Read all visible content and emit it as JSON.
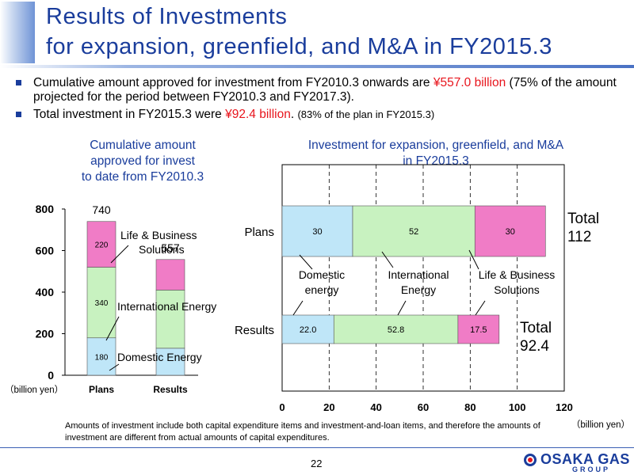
{
  "header": {
    "title_line1": "Results of Investments",
    "title_line2": "for expansion, greenfield, and M&A in FY2015.3"
  },
  "bullets": [
    {
      "pre": "Cumulative amount approved for investment from FY2010.3 onwards are ",
      "highlight": "¥557.0 billion",
      "post": " (75% of the amount projected for the period between FY2010.3 and FY2017.3).",
      "small": ""
    },
    {
      "pre": "Total investment in FY2015.3 were ",
      "highlight": "¥92.4 billion",
      "post": ". ",
      "small": "(83% of the plan in FY2015.3)"
    }
  ],
  "colors": {
    "domestic": "#bfe6f8",
    "international": "#c8f2c0",
    "life": "#f07cc6",
    "title": "#1a3d9c",
    "highlight": "#e8141c"
  },
  "chart_data": [
    {
      "type": "bar",
      "stacked": true,
      "title": "Cumulative amount approved for invest to date from FY2010.3",
      "title_lines": [
        "Cumulative amount",
        "approved for invest",
        "to date from FY2010.3"
      ],
      "categories": [
        "Plans",
        "Results"
      ],
      "series": [
        {
          "name": "Domestic Energy",
          "values": [
            180,
            130
          ],
          "labels": [
            "180",
            ""
          ]
        },
        {
          "name": "International Energy",
          "values": [
            340,
            280
          ],
          "labels": [
            "340",
            ""
          ]
        },
        {
          "name": "Life & Business Solutions",
          "values": [
            220,
            147
          ],
          "labels": [
            "220",
            ""
          ]
        }
      ],
      "totals": [
        "740",
        "557"
      ],
      "ylim": [
        0,
        800
      ],
      "yticks": [
        "0",
        "200",
        "400",
        "600",
        "800"
      ],
      "unit": "（billion yen）",
      "grid": false,
      "legend": "annotations"
    },
    {
      "type": "bar",
      "orientation": "horizontal",
      "stacked": true,
      "title": "Investment for expansion, greenfield, and M&A in FY2015.3",
      "title_lines": [
        "Investment for expansion, greenfield, and M&A",
        "in FY2015.3"
      ],
      "categories": [
        "Plans",
        "Results"
      ],
      "series": [
        {
          "name": "Domestic energy",
          "label_lines": [
            "Domestic",
            "energy"
          ],
          "values": [
            30,
            22.0
          ],
          "labels": [
            "30",
            "22.0"
          ]
        },
        {
          "name": "International Energy",
          "label_lines": [
            "International",
            "Energy"
          ],
          "values": [
            52,
            52.8
          ],
          "labels": [
            "52",
            "52.8"
          ]
        },
        {
          "name": "Life & Business Solutions",
          "label_lines": [
            "Life & Business",
            "Solutions"
          ],
          "values": [
            30,
            17.5
          ],
          "labels": [
            "30",
            "17.5"
          ]
        }
      ],
      "totals": [
        {
          "word": "Total",
          "value": "112"
        },
        {
          "word": "Total",
          "value": "92.4"
        }
      ],
      "xlim": [
        0,
        120
      ],
      "xticks": [
        "0",
        "20",
        "40",
        "60",
        "80",
        "100",
        "120"
      ],
      "unit": "（billion yen）",
      "grid": "vertical dashed"
    }
  ],
  "footnote": "Amounts of investment include both capital expenditure items and investment-and-loan items, and therefore the amounts of investment are different from actual amounts of capital expenditures.",
  "page_number": "22",
  "logo": {
    "word": "OSAKA GAS",
    "sub": "GROUP"
  }
}
